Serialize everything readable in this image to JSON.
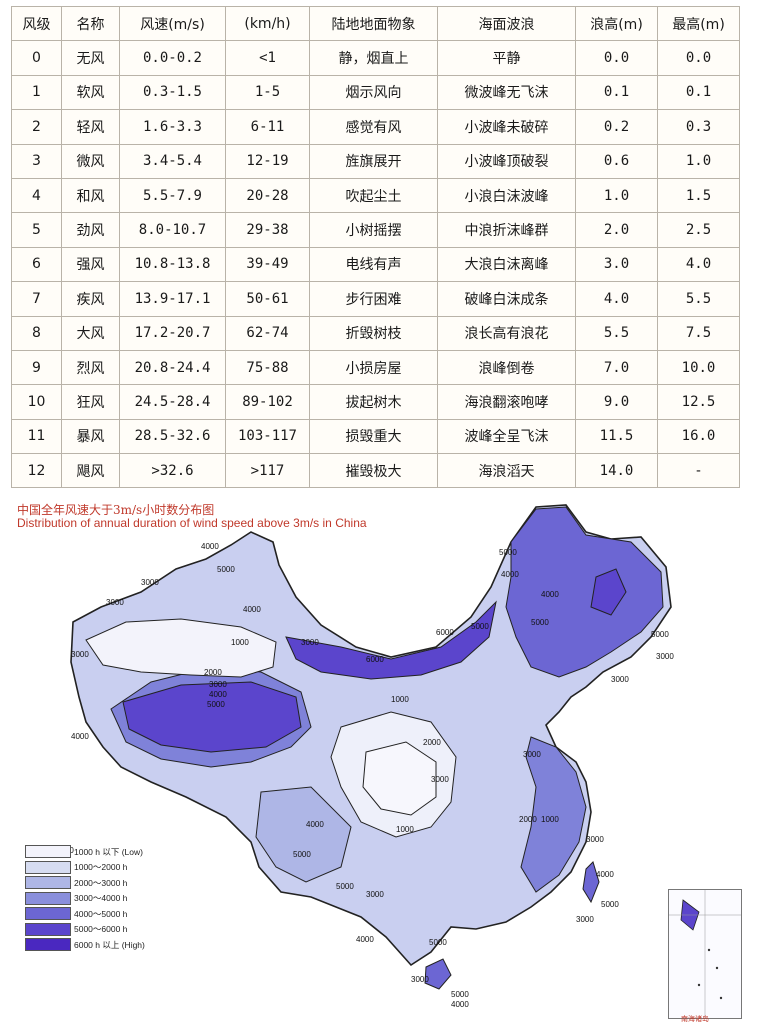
{
  "table": {
    "headers": [
      "风级",
      "名称",
      "风速(m/s)",
      "(km/h)",
      "陆地地面物象",
      "海面波浪",
      "浪高(m)",
      "最高(m)"
    ],
    "rows": [
      [
        "0",
        "无风",
        "0.0-0.2",
        "<1",
        "静，烟直上",
        "平静",
        "0.0",
        "0.0"
      ],
      [
        "1",
        "软风",
        "0.3-1.5",
        "1-5",
        "烟示风向",
        "微波峰无飞沫",
        "0.1",
        "0.1"
      ],
      [
        "2",
        "轻风",
        "1.6-3.3",
        "6-11",
        "感觉有风",
        "小波峰未破碎",
        "0.2",
        "0.3"
      ],
      [
        "3",
        "微风",
        "3.4-5.4",
        "12-19",
        "旌旗展开",
        "小波峰顶破裂",
        "0.6",
        "1.0"
      ],
      [
        "4",
        "和风",
        "5.5-7.9",
        "20-28",
        "吹起尘土",
        "小浪白沫波峰",
        "1.0",
        "1.5"
      ],
      [
        "5",
        "劲风",
        "8.0-10.7",
        "29-38",
        "小树摇摆",
        "中浪折沫峰群",
        "2.0",
        "2.5"
      ],
      [
        "6",
        "强风",
        "10.8-13.8",
        "39-49",
        "电线有声",
        "大浪白沫离峰",
        "3.0",
        "4.0"
      ],
      [
        "7",
        "疾风",
        "13.9-17.1",
        "50-61",
        "步行困难",
        "破峰白沫成条",
        "4.0",
        "5.5"
      ],
      [
        "8",
        "大风",
        "17.2-20.7",
        "62-74",
        "折毁树枝",
        "浪长高有浪花",
        "5.5",
        "7.5"
      ],
      [
        "9",
        "烈风",
        "20.8-24.4",
        "75-88",
        "小损房屋",
        "浪峰倒卷",
        "7.0",
        "10.0"
      ],
      [
        "10",
        "狂风",
        "24.5-28.4",
        "89-102",
        "拔起树木",
        "海浪翻滚咆哮",
        "9.0",
        "12.5"
      ],
      [
        "11",
        "暴风",
        "28.5-32.6",
        "103-117",
        "损毁重大",
        "波峰全呈飞沫",
        "11.5",
        "16.0"
      ],
      [
        "12",
        "飓风",
        ">32.6",
        ">117",
        "摧毁极大",
        "海浪滔天",
        "14.0",
        "-"
      ]
    ]
  },
  "map": {
    "title_cn": "中国全年风速大于3m/s小时数分布图",
    "title_en": "Distribution of annual duration of wind speed above 3m/s in China",
    "legend": [
      {
        "label": "1000 h  以下  (Low)",
        "color": "#f3f3fb"
      },
      {
        "label": "1000～2000 h",
        "color": "#d6dcf1"
      },
      {
        "label": "2000～3000 h",
        "color": "#aeb6e6"
      },
      {
        "label": "3000～4000 h",
        "color": "#8a8fdc"
      },
      {
        "label": "4000～5000 h",
        "color": "#6c66d3"
      },
      {
        "label": "5000～6000 h",
        "color": "#5b45cc"
      },
      {
        "label": "6000 h 以上  (High)",
        "color": "#4a28c0"
      }
    ],
    "contour_labels": [
      "4000",
      "3000",
      "5000",
      "4000",
      "3000",
      "3000",
      "1000",
      "2000",
      "3000",
      "4000",
      "5000",
      "4000",
      "3000",
      "6000",
      "5000",
      "6000",
      "5000",
      "4000",
      "5000",
      "4000",
      "5000",
      "3000",
      "3000",
      "1000",
      "2000",
      "3000",
      "1000",
      "3000",
      "2000",
      "1000",
      "4000",
      "5000",
      "5000",
      "3000",
      "4000",
      "5000",
      "3000",
      "4000",
      "5000",
      "3000",
      "3000",
      "5000",
      "4000",
      "3000"
    ],
    "inset_label": "南海诸岛"
  }
}
